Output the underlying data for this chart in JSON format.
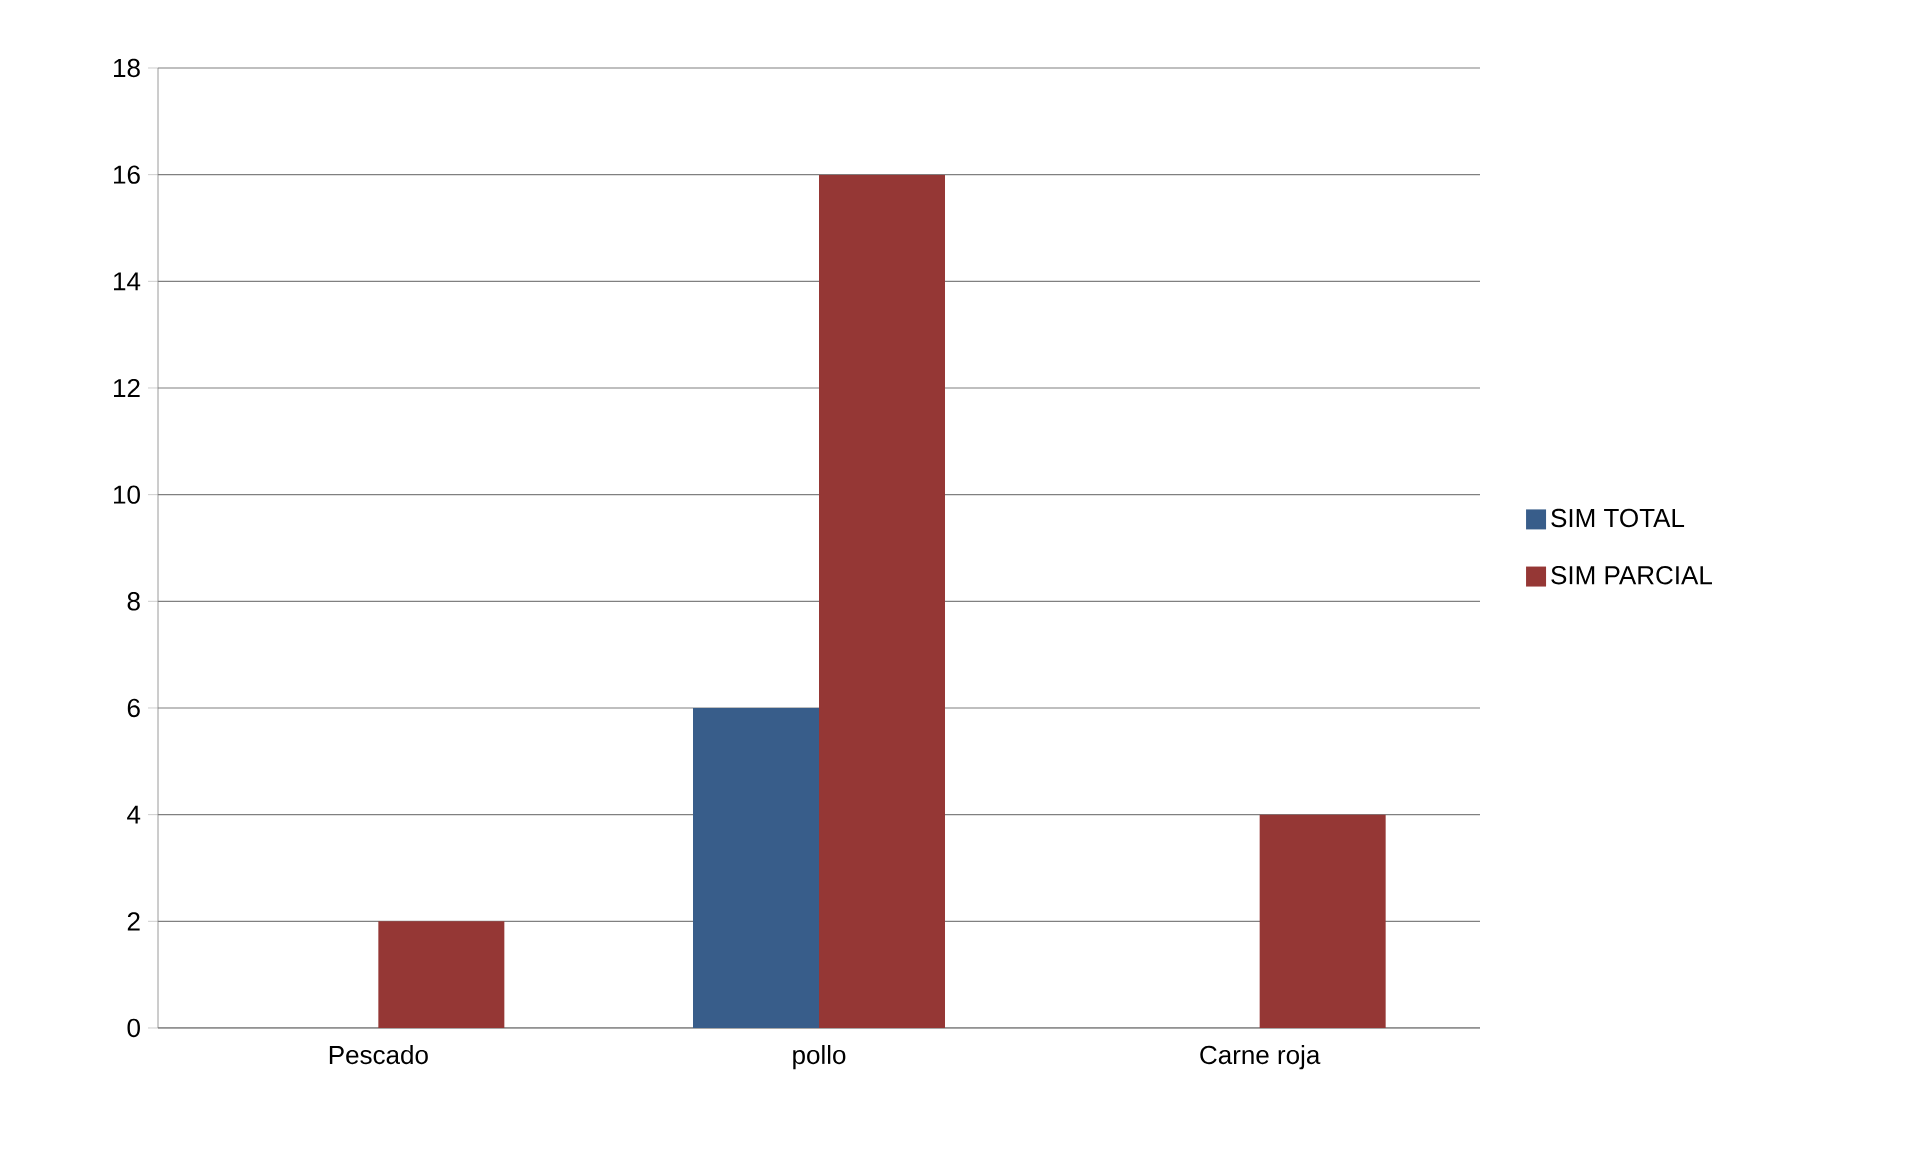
{
  "chart_data": {
    "type": "bar",
    "categories": [
      "Pescado",
      "pollo",
      "Carne roja"
    ],
    "series": [
      {
        "name": "SIM TOTAL",
        "color": "#385d8a",
        "values": [
          0,
          6,
          0
        ]
      },
      {
        "name": "SIM PARCIAL",
        "color": "#953735",
        "values": [
          2,
          16,
          4
        ]
      }
    ],
    "ylim": [
      0,
      18
    ],
    "yticks": [
      0,
      2,
      4,
      6,
      8,
      10,
      12,
      14,
      16,
      18
    ],
    "grid": "y",
    "legend": "right"
  }
}
